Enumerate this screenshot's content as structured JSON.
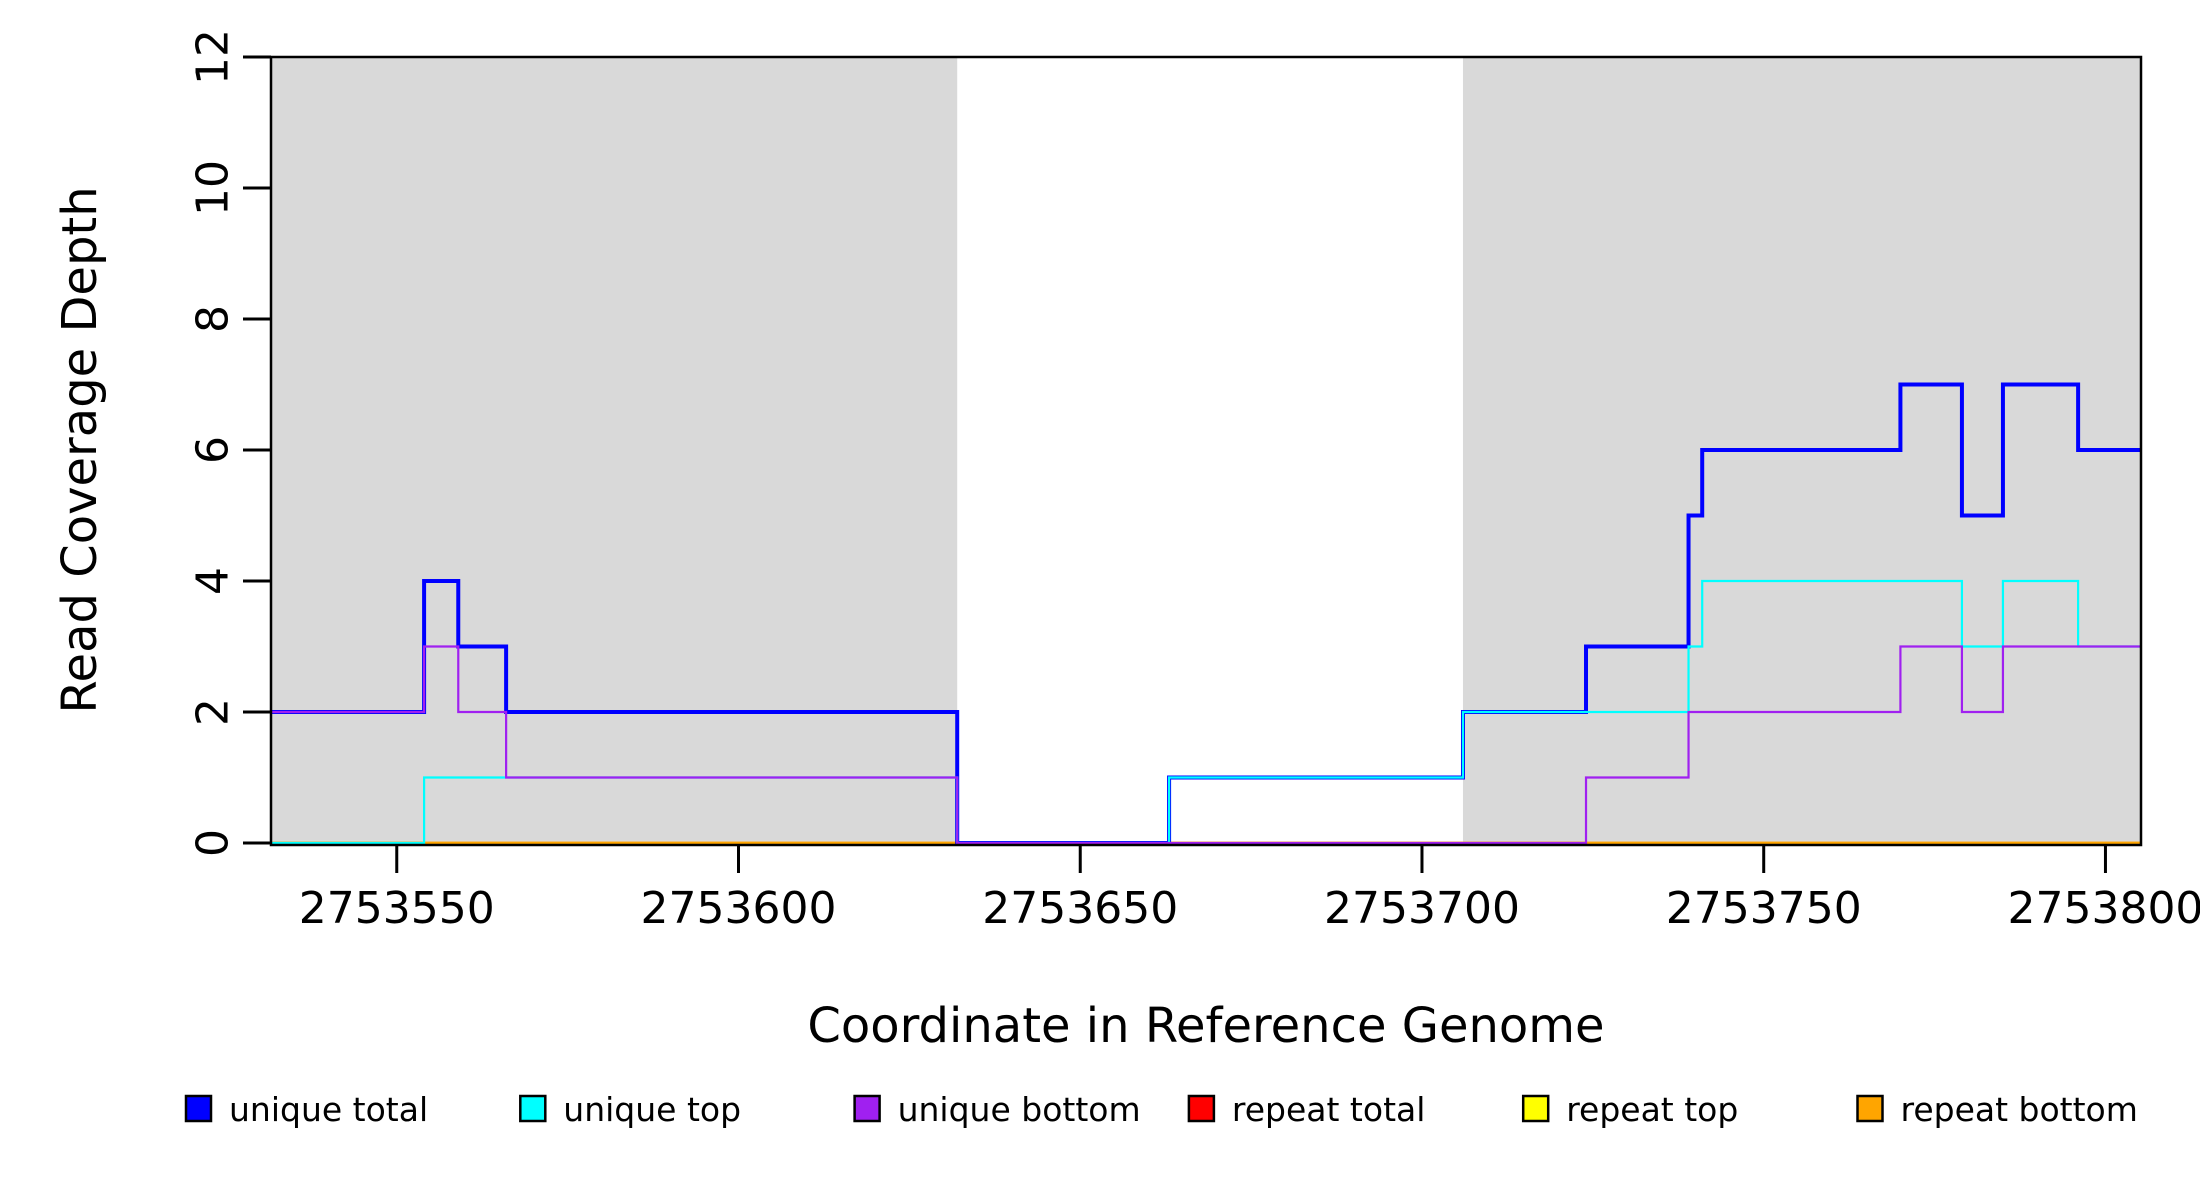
{
  "figure": {
    "background_color": "#ffffff",
    "shading_color": "#d9d9d9",
    "frame_color": "#000000"
  },
  "chart_data": {
    "type": "line",
    "subtype": "step-after-coverage-plot",
    "title": "",
    "xlabel": "Coordinate in Reference Genome",
    "ylabel": "Read Coverage Depth",
    "x_range": [
      2753531.6,
      2753805.2
    ],
    "y_range": [
      0,
      12
    ],
    "x_ticks": [
      2753550,
      2753600,
      2753650,
      2753700,
      2753750,
      2753800
    ],
    "y_ticks": [
      0,
      2,
      4,
      6,
      8,
      10,
      12
    ],
    "grid": false,
    "legend_position": "bottom-horizontal",
    "shaded_regions": [
      {
        "x_start": 2753531.6,
        "x_end": 2753632,
        "color": "#d9d9d9"
      },
      {
        "x_start": 2753706,
        "x_end": 2753805.2,
        "color": "#d9d9d9"
      }
    ],
    "draw_order": [
      "repeat total",
      "repeat top",
      "repeat bottom",
      "unique total",
      "unique top",
      "unique bottom"
    ],
    "series": [
      {
        "name": "unique total",
        "color": "#0000ff",
        "line_width": 4,
        "start_value": 2,
        "steps": [
          [
            2753554,
            4
          ],
          [
            2753559,
            3
          ],
          [
            2753566,
            2
          ],
          [
            2753632,
            0
          ],
          [
            2753663,
            1
          ],
          [
            2753706,
            2
          ],
          [
            2753724,
            3
          ],
          [
            2753739,
            5
          ],
          [
            2753741,
            6
          ],
          [
            2753770,
            7
          ],
          [
            2753779,
            5
          ],
          [
            2753785,
            7
          ],
          [
            2753796,
            6
          ]
        ]
      },
      {
        "name": "unique top",
        "color": "#00ffff",
        "line_width": 2.2,
        "start_value": 0,
        "steps": [
          [
            2753554,
            1
          ],
          [
            2753632,
            0
          ],
          [
            2753663,
            1
          ],
          [
            2753706,
            2
          ],
          [
            2753739,
            3
          ],
          [
            2753741,
            4
          ],
          [
            2753779,
            3
          ],
          [
            2753785,
            4
          ],
          [
            2753796,
            3
          ]
        ]
      },
      {
        "name": "unique bottom",
        "color": "#a020f0",
        "line_width": 2.2,
        "start_value": 2,
        "steps": [
          [
            2753554,
            3
          ],
          [
            2753559,
            2
          ],
          [
            2753566,
            1
          ],
          [
            2753632,
            0
          ],
          [
            2753724,
            1
          ],
          [
            2753739,
            2
          ],
          [
            2753770,
            3
          ],
          [
            2753779,
            2
          ],
          [
            2753785,
            3
          ]
        ]
      },
      {
        "name": "repeat total",
        "color": "#ff0000",
        "line_width": 2.2,
        "start_value": 0,
        "steps": []
      },
      {
        "name": "repeat top",
        "color": "#ffff00",
        "line_width": 2.2,
        "start_value": 0,
        "steps": []
      },
      {
        "name": "repeat bottom",
        "color": "#ffa500",
        "line_width": 2.8,
        "start_value": 0,
        "steps": []
      }
    ]
  }
}
